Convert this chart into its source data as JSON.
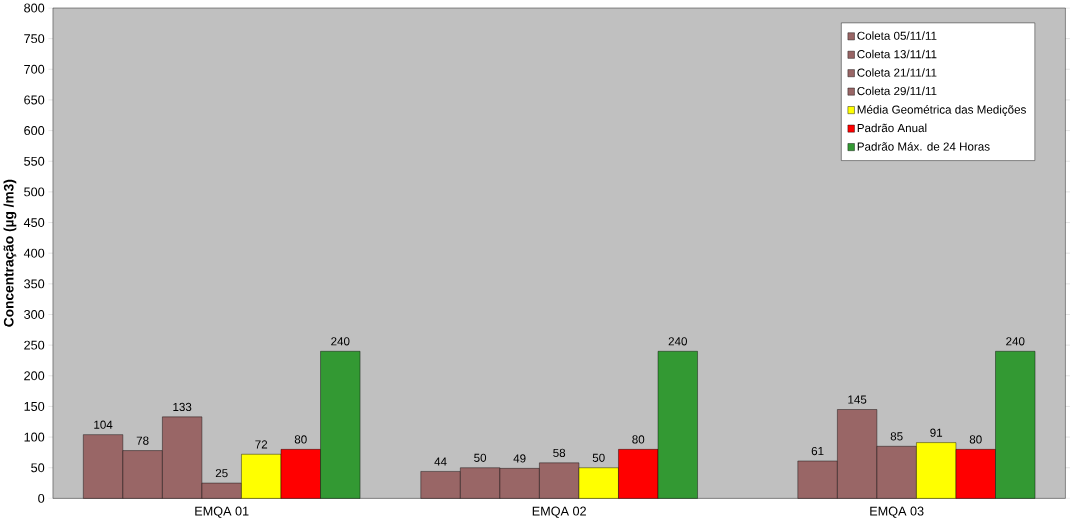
{
  "chart_data": {
    "type": "bar",
    "categories": [
      "EMQA 01",
      "EMQA 02",
      "EMQA 03"
    ],
    "ylabel": "Concentração  (µg /m3)",
    "series": [
      {
        "name": "Coleta 05/11/11",
        "color": "#996666",
        "values": [
          104,
          44,
          null
        ]
      },
      {
        "name": "Coleta 13/11/11",
        "color": "#996666",
        "values": [
          78,
          50,
          61
        ]
      },
      {
        "name": "Coleta 21/11/11",
        "color": "#996666",
        "values": [
          133,
          49,
          145
        ]
      },
      {
        "name": "Coleta 29/11/11",
        "color": "#996666",
        "values": [
          25,
          58,
          85
        ]
      },
      {
        "name": "Média Geométrica das Medições",
        "color": "#ffff00",
        "values": [
          72,
          50,
          91
        ]
      },
      {
        "name": "Padrão Anual",
        "color": "#ff0000",
        "values": [
          80,
          80,
          80
        ]
      },
      {
        "name": "Padrão Máx. de 24 Horas",
        "color": "#339933",
        "values": [
          240,
          240,
          240
        ]
      }
    ],
    "ylim": [
      0,
      800
    ],
    "yticks": [
      0,
      50,
      100,
      150,
      200,
      250,
      300,
      350,
      400,
      450,
      500,
      550,
      600,
      650,
      700,
      750,
      800
    ],
    "data_labels": true,
    "grid": false,
    "legend": "top right"
  }
}
